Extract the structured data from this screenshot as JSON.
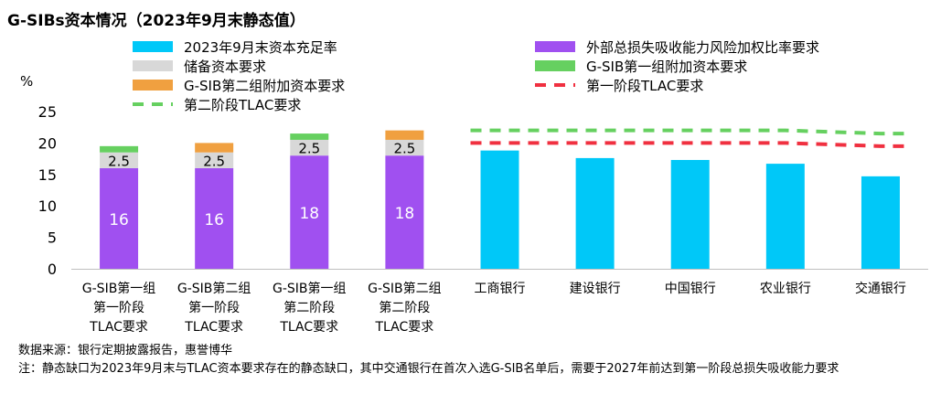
{
  "title": "G-SIBs资本情况（2023年9月末静态值）",
  "unit": "%",
  "source": "数据来源：银行定期披露报告，惠誉博华",
  "note": "注：静态缺口为2023年9月末与TLAC资本要求存在的静态缺口，其中交通银行在首次入选G-SIB名单后，需要于2027年前达到第一阶段总损失吸收能力要求",
  "legend": [
    {
      "label": "2023年9月末资本充足率",
      "color": "#00C8F8",
      "kind": "bar"
    },
    {
      "label": "外部总损失吸收能力风险加权比率要求",
      "color": "#A050F0",
      "kind": "bar"
    },
    {
      "label": "储备资本要求",
      "color": "#D8D8D8",
      "kind": "bar"
    },
    {
      "label": "G-SIB第一组附加资本要求",
      "color": "#66D060",
      "kind": "bar"
    },
    {
      "label": "G-SIB第二组附加资本要求",
      "color": "#F0A040",
      "kind": "bar"
    },
    {
      "label": "第一阶段TLAC要求",
      "color": "#F03040",
      "kind": "dash"
    },
    {
      "label": "第二阶段TLAC要求",
      "color": "#66D060",
      "kind": "dash"
    }
  ],
  "chart_data": {
    "type": "bar",
    "ylim": [
      0,
      25
    ],
    "yticks": [
      0,
      5,
      10,
      15,
      20,
      25
    ],
    "categories": [
      [
        "G-SIB第一组",
        "第一阶段",
        "TLAC要求"
      ],
      [
        "G-SIB第二组",
        "第一阶段",
        "TLAC要求"
      ],
      [
        "G-SIB第一组",
        "第二阶段",
        "TLAC要求"
      ],
      [
        "G-SIB第二组",
        "第二阶段",
        "TLAC要求"
      ],
      [
        "工商银行"
      ],
      [
        "建设银行"
      ],
      [
        "中国银行"
      ],
      [
        "农业银行"
      ],
      [
        "交通银行"
      ]
    ],
    "stacks": [
      {
        "tlac": 16,
        "reserve": 2.5,
        "gsib1": 1.0,
        "gsib2": 0
      },
      {
        "tlac": 16,
        "reserve": 2.5,
        "gsib1": 0,
        "gsib2": 1.5
      },
      {
        "tlac": 18,
        "reserve": 2.5,
        "gsib1": 1.0,
        "gsib2": 0
      },
      {
        "tlac": 18,
        "reserve": 2.5,
        "gsib1": 0,
        "gsib2": 1.5
      }
    ],
    "stack_labels": [
      {
        "tlac": "16",
        "reserve": "2.5"
      },
      {
        "tlac": "16",
        "reserve": "2.5"
      },
      {
        "tlac": "18",
        "reserve": "2.5"
      },
      {
        "tlac": "18",
        "reserve": "2.5"
      }
    ],
    "banks": [
      {
        "name": "工商银行",
        "car": 18.8,
        "stage1": 20.0,
        "stage2": 22.0
      },
      {
        "name": "建设银行",
        "car": 17.6,
        "stage1": 20.0,
        "stage2": 22.0
      },
      {
        "name": "中国银行",
        "car": 17.3,
        "stage1": 20.0,
        "stage2": 22.0
      },
      {
        "name": "农业银行",
        "car": 16.7,
        "stage1": 20.0,
        "stage2": 22.0
      },
      {
        "name": "交通银行",
        "car": 14.7,
        "stage1": 19.5,
        "stage2": 21.5
      }
    ]
  }
}
